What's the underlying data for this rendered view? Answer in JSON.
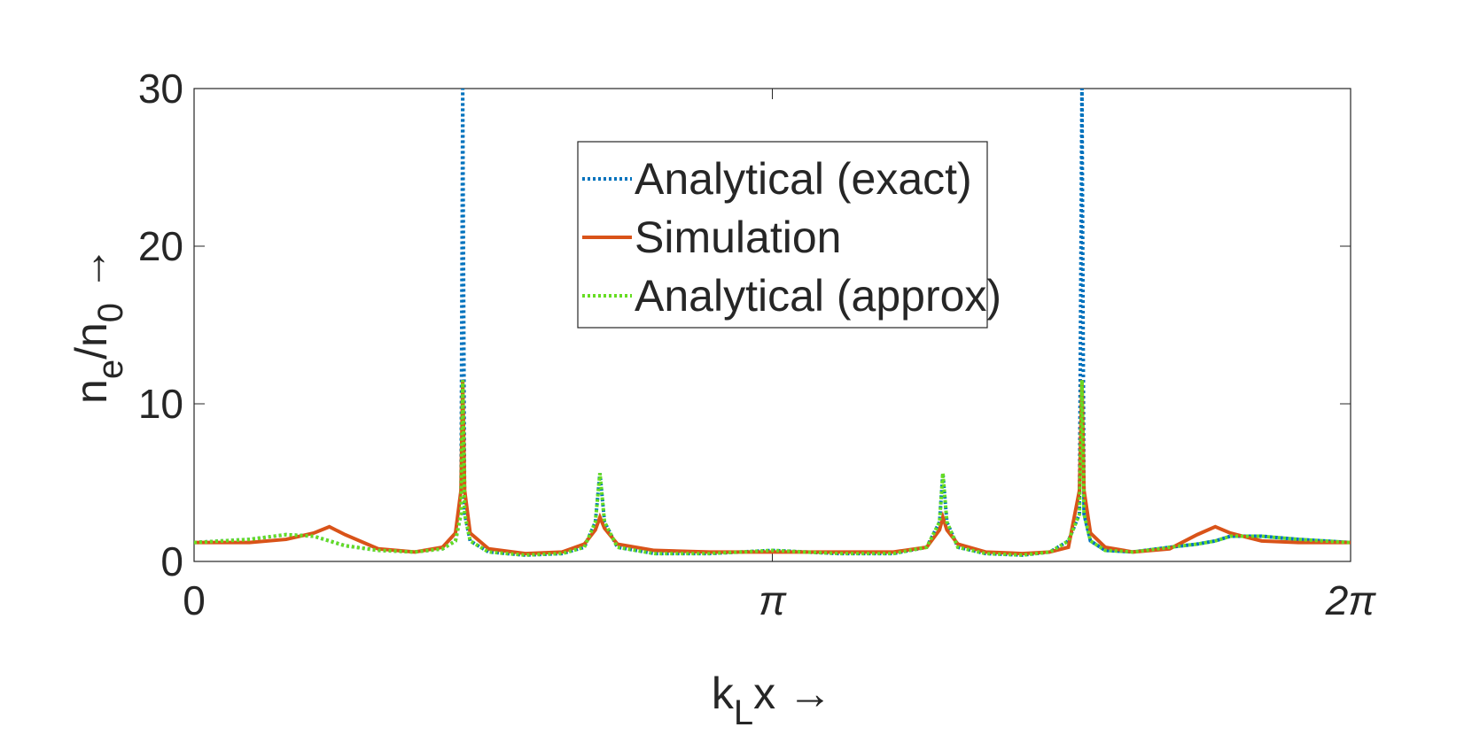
{
  "chart_data": {
    "type": "line",
    "xlabel": [
      "k",
      "L",
      "x →"
    ],
    "ylabel": [
      "n",
      "e",
      "/n",
      "0",
      " →"
    ],
    "x": [
      0,
      0.3,
      0.5,
      0.65,
      0.735,
      0.82,
      1.0,
      1.2,
      1.35,
      1.42,
      1.45,
      1.4595,
      1.47,
      1.5,
      1.6,
      1.8,
      2.0,
      2.12,
      2.18,
      2.205,
      2.23,
      2.3,
      2.5,
      2.8,
      3.1416,
      3.5,
      3.8,
      3.98,
      4.05,
      4.068,
      4.09,
      4.15,
      4.3,
      4.5,
      4.65,
      4.75,
      4.81,
      4.8237,
      4.835,
      4.87,
      4.95,
      5.1,
      5.3,
      5.45,
      5.548,
      5.63,
      5.8,
      6.0,
      6.2832
    ],
    "series": [
      {
        "name": "Analytical (exact)",
        "color": "#0072bd",
        "dash": "dotted",
        "values": [
          1.2,
          1.4,
          1.7,
          1.6,
          1.3,
          1.0,
          0.7,
          0.6,
          0.8,
          1.3,
          3,
          30,
          3,
          1.3,
          0.6,
          0.4,
          0.5,
          0.9,
          2.5,
          5.6,
          2.5,
          0.9,
          0.5,
          0.5,
          0.7,
          0.5,
          0.5,
          0.9,
          2.5,
          5.6,
          2.5,
          0.9,
          0.5,
          0.4,
          0.6,
          1.3,
          3,
          30,
          3,
          1.3,
          0.7,
          0.6,
          0.9,
          1.1,
          1.3,
          1.6,
          1.6,
          1.4,
          1.2
        ]
      },
      {
        "name": "Simulation",
        "color": "#d95319",
        "dash": "solid",
        "values": [
          1.2,
          1.2,
          1.4,
          1.8,
          2.2,
          1.7,
          0.8,
          0.6,
          0.9,
          1.8,
          4.5,
          11.5,
          4.5,
          1.8,
          0.8,
          0.5,
          0.6,
          1.1,
          2.0,
          2.8,
          2.1,
          1.1,
          0.7,
          0.6,
          0.6,
          0.6,
          0.6,
          0.9,
          2.0,
          2.8,
          2.0,
          1.1,
          0.6,
          0.5,
          0.6,
          0.9,
          4.5,
          11.5,
          4.5,
          1.8,
          0.9,
          0.6,
          0.8,
          1.7,
          2.2,
          1.8,
          1.3,
          1.2,
          1.2
        ]
      },
      {
        "name": "Analytical (approx)",
        "color": "#66dd22",
        "dash": "dotted",
        "values": [
          1.2,
          1.4,
          1.7,
          1.6,
          1.3,
          1.0,
          0.7,
          0.6,
          0.8,
          1.3,
          3,
          11.5,
          3,
          1.3,
          0.6,
          0.4,
          0.5,
          0.9,
          2.5,
          5.6,
          2.5,
          0.9,
          0.5,
          0.5,
          0.7,
          0.5,
          0.5,
          0.9,
          2.5,
          5.6,
          2.5,
          0.9,
          0.5,
          0.4,
          0.6,
          1.3,
          3,
          11.5,
          3,
          1.3,
          0.7,
          0.6,
          0.9,
          1.1,
          1.3,
          1.6,
          1.6,
          1.4,
          1.2
        ]
      }
    ],
    "xlim": [
      0,
      6.2832
    ],
    "xticks": [
      0,
      {
        "value": 3.1416,
        "label": "π"
      },
      {
        "value": 6.2832,
        "label": "2π"
      }
    ],
    "ylim": [
      0,
      30
    ],
    "yticks": [
      0,
      10,
      20,
      30
    ],
    "legend": "top"
  }
}
